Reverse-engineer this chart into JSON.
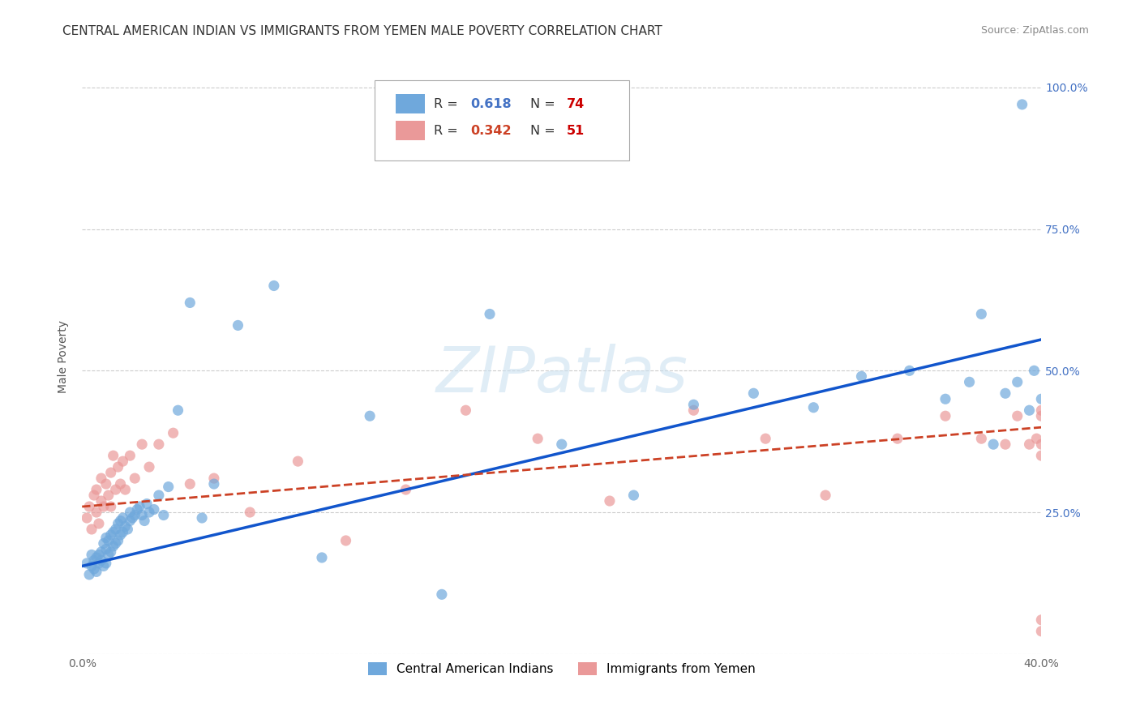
{
  "title": "CENTRAL AMERICAN INDIAN VS IMMIGRANTS FROM YEMEN MALE POVERTY CORRELATION CHART",
  "source": "Source: ZipAtlas.com",
  "ylabel": "Male Poverty",
  "xlim": [
    0.0,
    0.4
  ],
  "ylim": [
    0.0,
    1.05
  ],
  "xticks": [
    0.0,
    0.1,
    0.2,
    0.3,
    0.4
  ],
  "xticklabels": [
    "0.0%",
    "",
    "",
    "",
    "40.0%"
  ],
  "yticks": [
    0.0,
    0.25,
    0.5,
    0.75,
    1.0
  ],
  "right_yticklabels": [
    "",
    "25.0%",
    "50.0%",
    "75.0%",
    "100.0%"
  ],
  "blue_color": "#6fa8dc",
  "pink_color": "#ea9999",
  "blue_line_color": "#1155cc",
  "pink_line_color": "#cc4125",
  "grid_color": "#cccccc",
  "background_color": "#ffffff",
  "watermark": "ZIPatlas",
  "legend_label1": "Central American Indians",
  "legend_label2": "Immigrants from Yemen",
  "blue_scatter_x": [
    0.002,
    0.003,
    0.004,
    0.004,
    0.005,
    0.005,
    0.006,
    0.006,
    0.007,
    0.007,
    0.008,
    0.008,
    0.009,
    0.009,
    0.01,
    0.01,
    0.01,
    0.011,
    0.011,
    0.012,
    0.012,
    0.013,
    0.013,
    0.014,
    0.014,
    0.015,
    0.015,
    0.016,
    0.016,
    0.017,
    0.017,
    0.018,
    0.019,
    0.02,
    0.02,
    0.021,
    0.022,
    0.023,
    0.024,
    0.025,
    0.026,
    0.027,
    0.028,
    0.03,
    0.032,
    0.034,
    0.036,
    0.04,
    0.045,
    0.05,
    0.055,
    0.065,
    0.08,
    0.1,
    0.12,
    0.15,
    0.17,
    0.2,
    0.23,
    0.255,
    0.28,
    0.305,
    0.325,
    0.345,
    0.36,
    0.37,
    0.375,
    0.38,
    0.385,
    0.39,
    0.392,
    0.395,
    0.397,
    0.4
  ],
  "blue_scatter_y": [
    0.16,
    0.14,
    0.155,
    0.175,
    0.15,
    0.165,
    0.145,
    0.17,
    0.16,
    0.175,
    0.165,
    0.18,
    0.155,
    0.195,
    0.16,
    0.185,
    0.205,
    0.175,
    0.2,
    0.18,
    0.21,
    0.19,
    0.215,
    0.195,
    0.22,
    0.2,
    0.23,
    0.21,
    0.235,
    0.215,
    0.24,
    0.225,
    0.22,
    0.235,
    0.25,
    0.24,
    0.245,
    0.255,
    0.26,
    0.245,
    0.235,
    0.265,
    0.25,
    0.255,
    0.28,
    0.245,
    0.295,
    0.43,
    0.62,
    0.24,
    0.3,
    0.58,
    0.65,
    0.17,
    0.42,
    0.105,
    0.6,
    0.37,
    0.28,
    0.44,
    0.46,
    0.435,
    0.49,
    0.5,
    0.45,
    0.48,
    0.6,
    0.37,
    0.46,
    0.48,
    0.97,
    0.43,
    0.5,
    0.45
  ],
  "pink_scatter_x": [
    0.002,
    0.003,
    0.004,
    0.005,
    0.006,
    0.006,
    0.007,
    0.008,
    0.008,
    0.009,
    0.01,
    0.011,
    0.012,
    0.012,
    0.013,
    0.014,
    0.015,
    0.016,
    0.017,
    0.018,
    0.02,
    0.022,
    0.025,
    0.028,
    0.032,
    0.038,
    0.045,
    0.055,
    0.07,
    0.09,
    0.11,
    0.135,
    0.16,
    0.19,
    0.22,
    0.255,
    0.285,
    0.31,
    0.34,
    0.36,
    0.375,
    0.385,
    0.39,
    0.395,
    0.398,
    0.4,
    0.4,
    0.4,
    0.4,
    0.4,
    0.4
  ],
  "pink_scatter_y": [
    0.24,
    0.26,
    0.22,
    0.28,
    0.25,
    0.29,
    0.23,
    0.27,
    0.31,
    0.26,
    0.3,
    0.28,
    0.32,
    0.26,
    0.35,
    0.29,
    0.33,
    0.3,
    0.34,
    0.29,
    0.35,
    0.31,
    0.37,
    0.33,
    0.37,
    0.39,
    0.3,
    0.31,
    0.25,
    0.34,
    0.2,
    0.29,
    0.43,
    0.38,
    0.27,
    0.43,
    0.38,
    0.28,
    0.38,
    0.42,
    0.38,
    0.37,
    0.42,
    0.37,
    0.38,
    0.43,
    0.37,
    0.35,
    0.04,
    0.06,
    0.42
  ],
  "blue_line_x0": 0.0,
  "blue_line_y0": 0.155,
  "blue_line_x1": 0.4,
  "blue_line_y1": 0.555,
  "pink_line_x0": 0.0,
  "pink_line_y0": 0.26,
  "pink_line_x1": 0.4,
  "pink_line_y1": 0.4,
  "title_fontsize": 11,
  "axis_fontsize": 10,
  "tick_fontsize": 10
}
